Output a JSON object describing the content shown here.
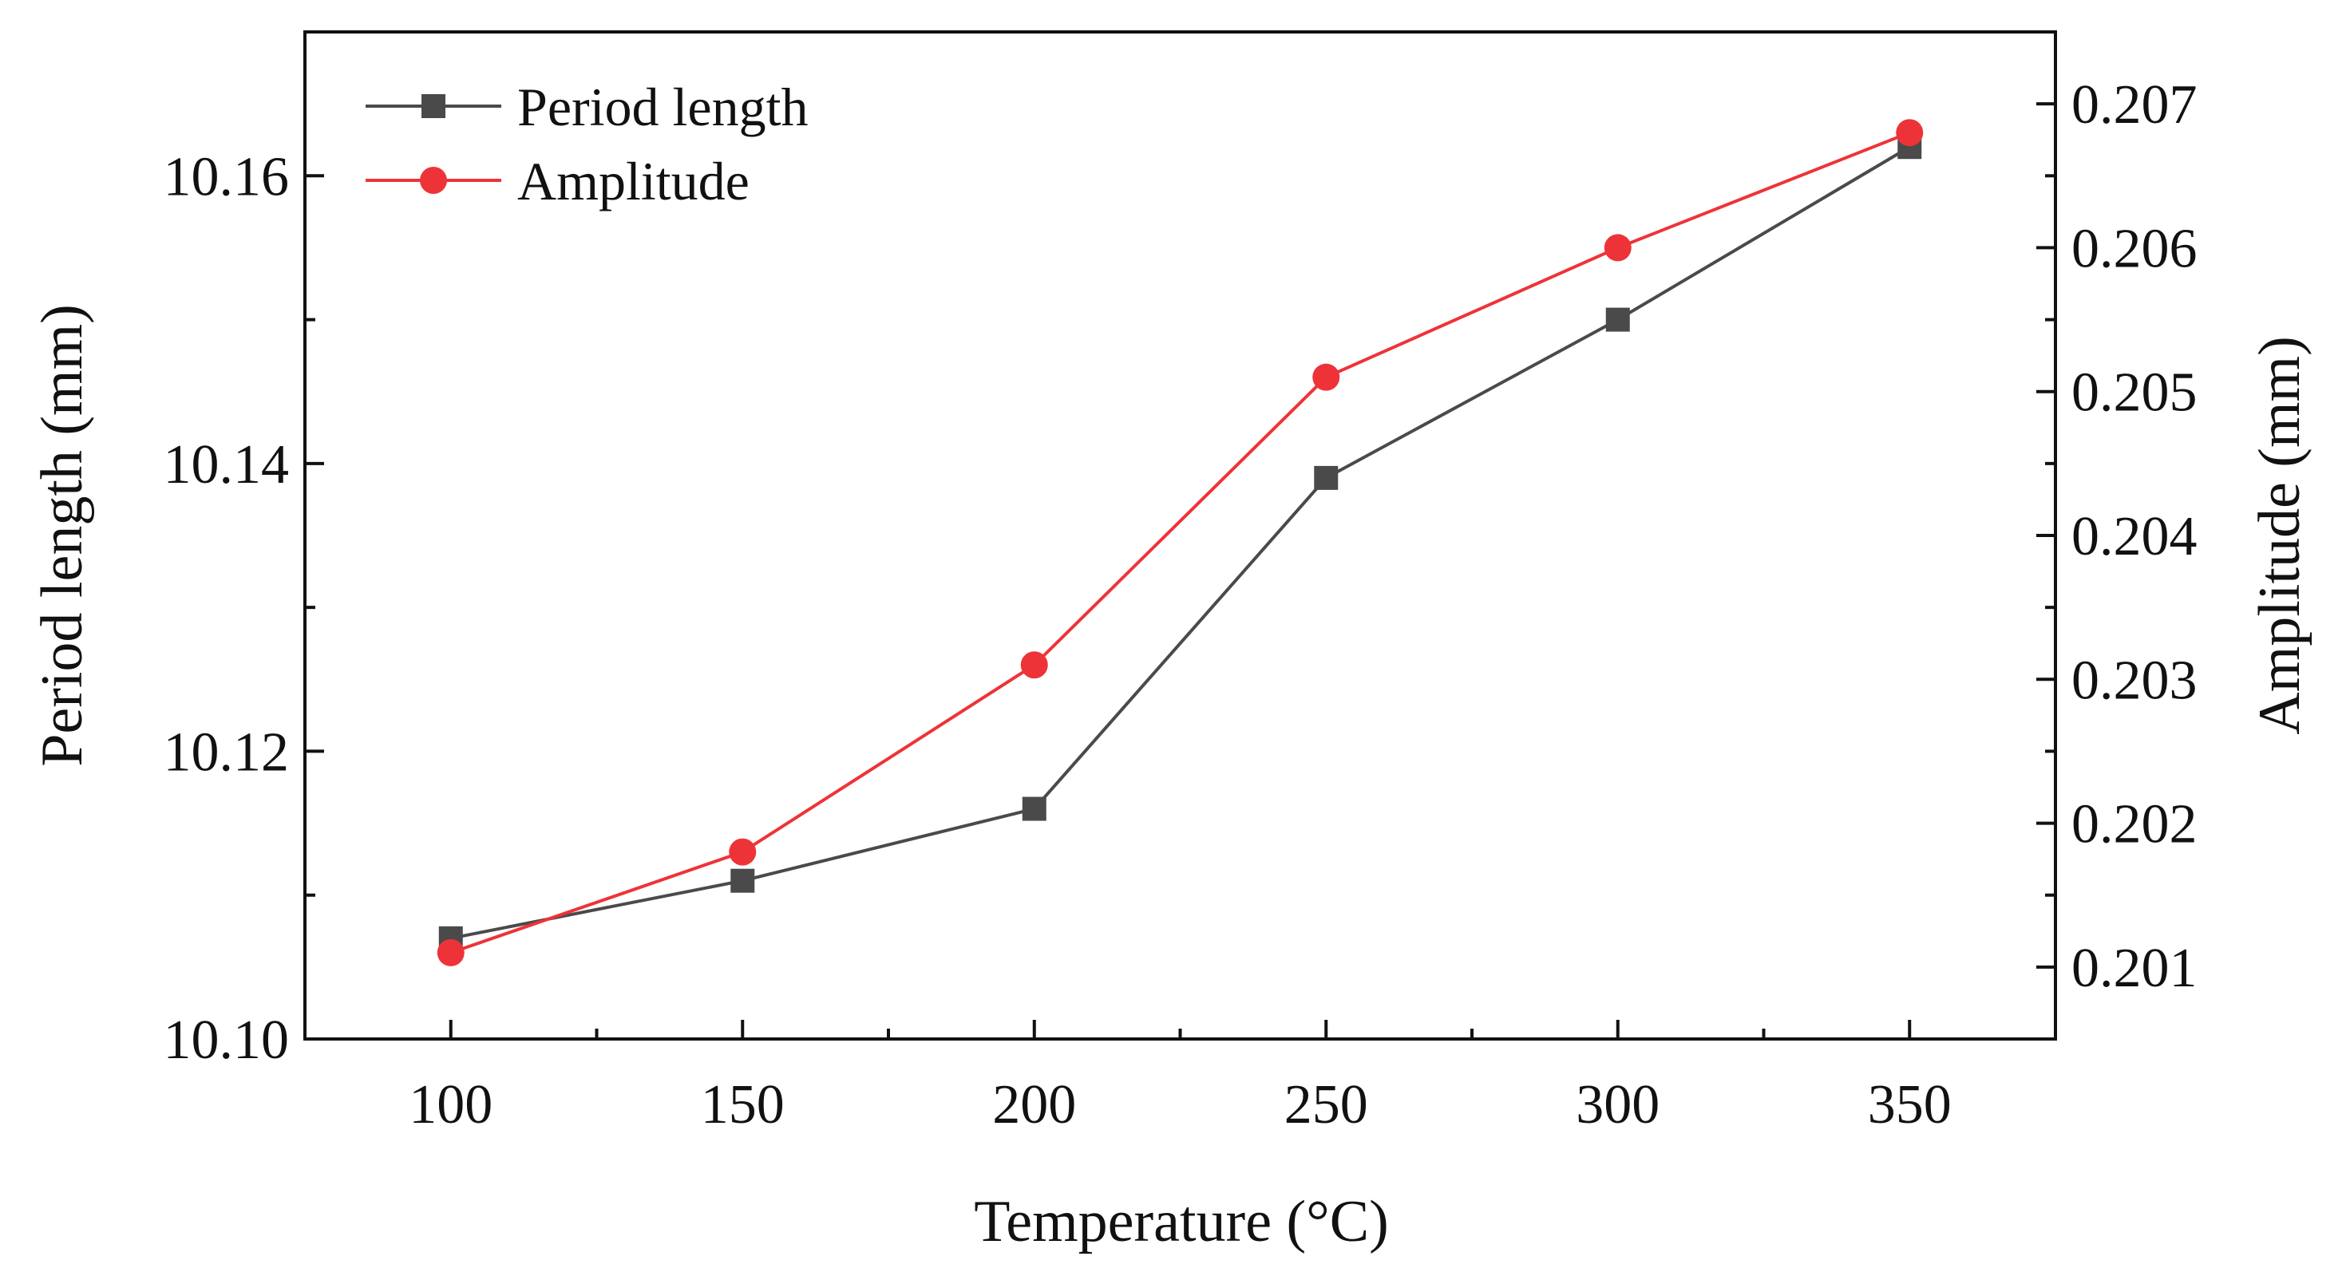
{
  "chart_data": {
    "type": "line",
    "title": "",
    "xlabel": "Temperature (°C)",
    "ylabel_left": "Period length (mm)",
    "ylabel_right": "Amplitude (mm)",
    "x": [
      100,
      150,
      200,
      250,
      300,
      350
    ],
    "x_tick_labels": [
      "100",
      "150",
      "200",
      "250",
      "300",
      "350"
    ],
    "xlim": [
      75,
      375
    ],
    "ylim_left": [
      10.1,
      10.17
    ],
    "ylim_right": [
      0.2005,
      0.2075
    ],
    "y_left_tick_values": [
      10.1,
      10.12,
      10.14,
      10.16
    ],
    "y_left_tick_labels": [
      "10.10",
      "10.12",
      "10.14",
      "10.16"
    ],
    "y_right_tick_values": [
      0.201,
      0.202,
      0.203,
      0.204,
      0.205,
      0.206,
      0.207
    ],
    "y_right_tick_labels": [
      "0.201",
      "0.202",
      "0.203",
      "0.204",
      "0.205",
      "0.206",
      "0.207"
    ],
    "grid": false,
    "legend_position": "top-left",
    "series": [
      {
        "name": "Period length",
        "axis": "left",
        "color": "#4a4a4a",
        "marker": "square",
        "values": [
          10.107,
          10.111,
          10.116,
          10.139,
          10.15,
          10.162
        ]
      },
      {
        "name": "Amplitude",
        "axis": "right",
        "color": "#ee3338",
        "marker": "circle",
        "values": [
          0.2011,
          0.2018,
          0.2031,
          0.2051,
          0.206,
          0.2068
        ]
      }
    ]
  }
}
